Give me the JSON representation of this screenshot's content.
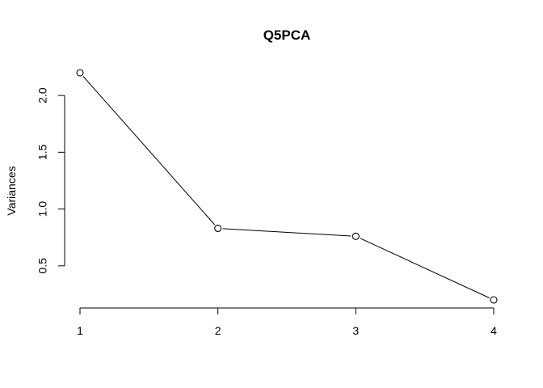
{
  "chart_data": {
    "type": "line",
    "title": "Q5PCA",
    "xlabel": "",
    "ylabel": "Variances",
    "x": [
      1,
      2,
      3,
      4
    ],
    "x_tick_labels": [
      "1",
      "2",
      "3",
      "4"
    ],
    "series": [
      {
        "values": [
          2.2,
          0.83,
          0.76,
          0.2
        ]
      }
    ],
    "y_ticks": [
      0.5,
      1.0,
      1.5,
      2.0
    ],
    "y_tick_labels": [
      "0.5",
      "1.0",
      "1.5",
      "2.0"
    ],
    "ylim": [
      0.2,
      2.2
    ],
    "xlim": [
      1,
      4
    ],
    "grid": false,
    "marker": "open-circle",
    "line_color": "#000000"
  }
}
